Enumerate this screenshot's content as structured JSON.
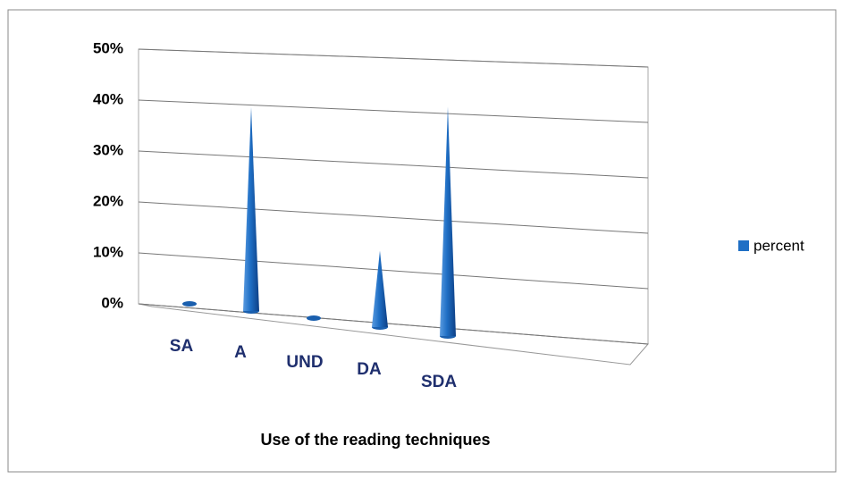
{
  "chart_data": {
    "type": "cone3d",
    "x_label": "Use of the reading techniques",
    "categories": [
      "SA",
      "A",
      "UND",
      "DA",
      "SDA"
    ],
    "series": [
      {
        "name": "percent",
        "color": "#1f6fc5",
        "values": [
          0,
          40,
          0,
          15,
          45
        ]
      }
    ],
    "ylim": [
      0,
      50
    ],
    "yticks": [
      {
        "value": 0,
        "label": "0%"
      },
      {
        "value": 10,
        "label": "10%"
      },
      {
        "value": 20,
        "label": "20%"
      },
      {
        "value": 30,
        "label": "30%"
      },
      {
        "value": 40,
        "label": "40%"
      },
      {
        "value": 50,
        "label": "50%"
      }
    ],
    "grid": true,
    "legend": "right"
  }
}
